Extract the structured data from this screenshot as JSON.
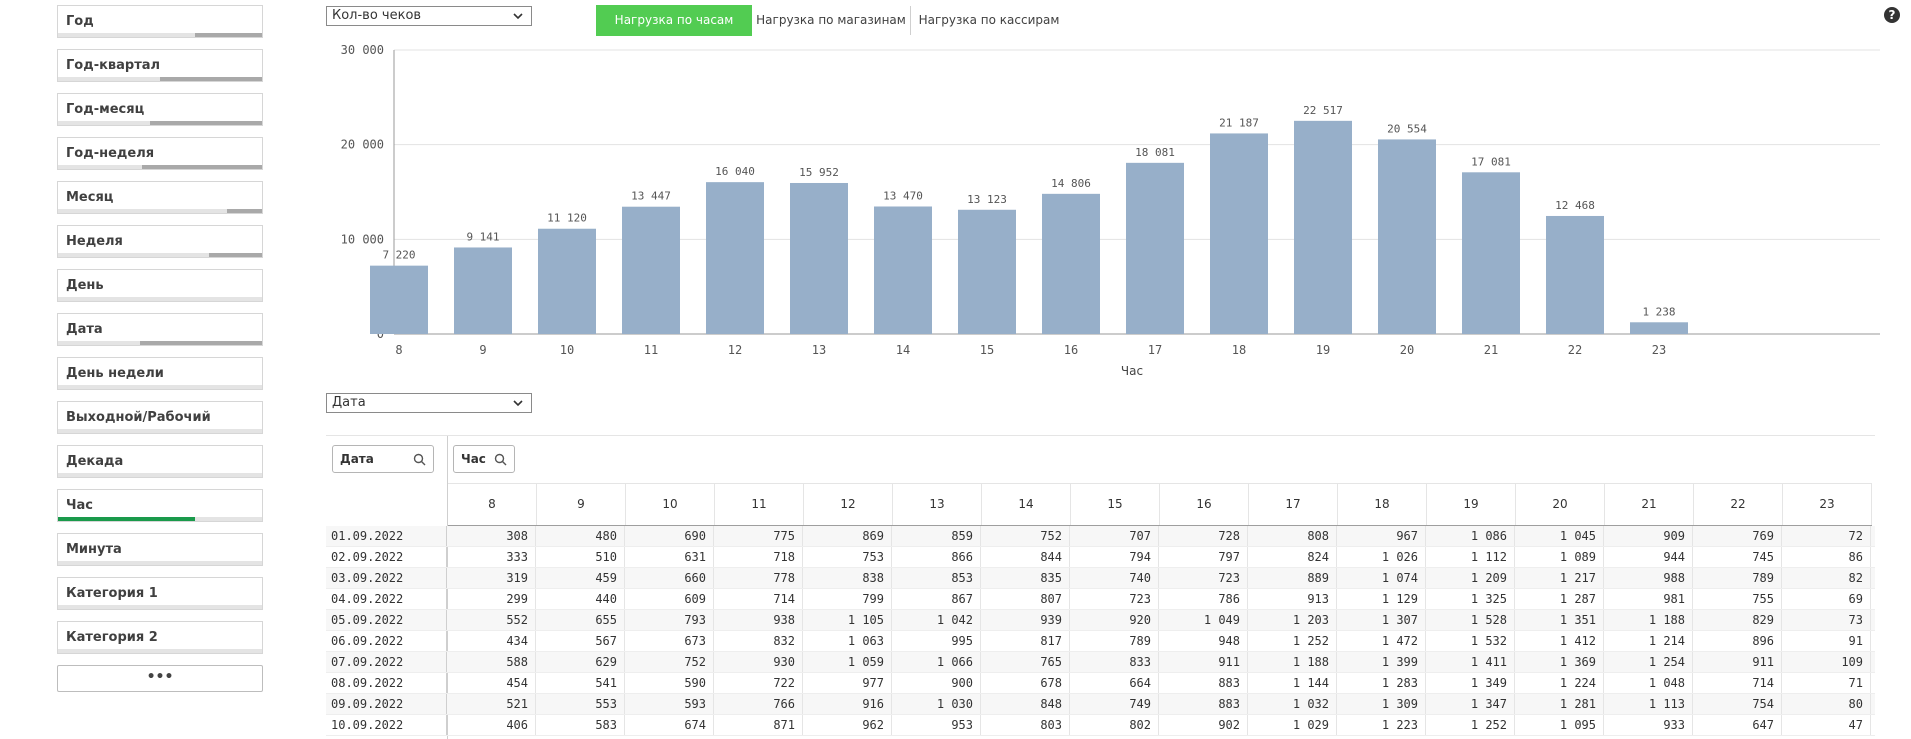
{
  "filters": [
    {
      "label": "Год",
      "fill": 0.33,
      "color": "#a9a9a9"
    },
    {
      "label": "Год-квартал",
      "fill": 0.5,
      "color": "#a9a9a9"
    },
    {
      "label": "Год-месяц",
      "fill": 0.55,
      "color": "#a9a9a9"
    },
    {
      "label": "Год-неделя",
      "fill": 0.59,
      "color": "#a9a9a9"
    },
    {
      "label": "Месяц",
      "fill": 0.17,
      "color": "#a9a9a9"
    },
    {
      "label": "Неделя",
      "fill": 0.26,
      "color": "#a9a9a9"
    },
    {
      "label": "День",
      "fill": 0,
      "color": "#a9a9a9"
    },
    {
      "label": "Дата",
      "fill": 0.6,
      "color": "#a9a9a9"
    },
    {
      "label": "День недели",
      "fill": 0,
      "color": "#a9a9a9"
    },
    {
      "label": "Выходной/Рабочий",
      "fill": 0,
      "color": "#a9a9a9"
    },
    {
      "label": "Декада",
      "fill": 0,
      "color": "#a9a9a9"
    },
    {
      "label": "Час",
      "fill": 0.67,
      "color": "#1a9a4b",
      "align": "left"
    },
    {
      "label": "Минута",
      "fill": 0,
      "color": "#a9a9a9"
    },
    {
      "label": "Категория 1",
      "fill": 0,
      "color": "#a9a9a9"
    },
    {
      "label": "Категория 2",
      "fill": 0,
      "color": "#a9a9a9"
    }
  ],
  "more_label": "•••",
  "measure_select": "Кол-во чеков",
  "tabs": [
    "Нагрузка по часам",
    "Нагрузка по магазинам",
    "Нагрузка по кассирам"
  ],
  "help_label": "?",
  "dim_select": "Дата",
  "chart_data": {
    "type": "bar",
    "categories": [
      "8",
      "9",
      "10",
      "11",
      "12",
      "13",
      "14",
      "15",
      "16",
      "17",
      "18",
      "19",
      "20",
      "21",
      "22",
      "23"
    ],
    "values": [
      7220,
      9141,
      11120,
      13447,
      16040,
      15952,
      13470,
      13123,
      14806,
      18081,
      21187,
      22517,
      20554,
      17081,
      12468,
      1238
    ],
    "value_labels": [
      "7 220",
      "9 141",
      "11 120",
      "13 447",
      "16 040",
      "15 952",
      "13 470",
      "13 123",
      "14 806",
      "18 081",
      "21 187",
      "22 517",
      "20 554",
      "17 081",
      "12 468",
      "1 238"
    ],
    "xlabel": "Час",
    "ylim": [
      0,
      30000
    ],
    "yticks": [
      0,
      10000,
      20000,
      30000
    ],
    "ytick_labels": [
      "0",
      "10 000",
      "20 000",
      "30 000"
    ],
    "bar_color": "#97afc9",
    "grid": true
  },
  "table": {
    "date_header": "Дата",
    "hour_header": "Час",
    "hours": [
      "8",
      "9",
      "10",
      "11",
      "12",
      "13",
      "14",
      "15",
      "16",
      "17",
      "18",
      "19",
      "20",
      "21",
      "22",
      "23"
    ],
    "rows": [
      {
        "date": "01.09.2022",
        "cells": [
          "308",
          "480",
          "690",
          "775",
          "869",
          "859",
          "752",
          "707",
          "728",
          "808",
          "967",
          "1 086",
          "1 045",
          "909",
          "769",
          "72"
        ]
      },
      {
        "date": "02.09.2022",
        "cells": [
          "333",
          "510",
          "631",
          "718",
          "753",
          "866",
          "844",
          "794",
          "797",
          "824",
          "1 026",
          "1 112",
          "1 089",
          "944",
          "745",
          "86"
        ]
      },
      {
        "date": "03.09.2022",
        "cells": [
          "319",
          "459",
          "660",
          "778",
          "838",
          "853",
          "835",
          "740",
          "723",
          "889",
          "1 074",
          "1 209",
          "1 217",
          "988",
          "789",
          "82"
        ]
      },
      {
        "date": "04.09.2022",
        "cells": [
          "299",
          "440",
          "609",
          "714",
          "799",
          "867",
          "807",
          "723",
          "786",
          "913",
          "1 129",
          "1 325",
          "1 287",
          "981",
          "755",
          "69"
        ]
      },
      {
        "date": "05.09.2022",
        "cells": [
          "552",
          "655",
          "793",
          "938",
          "1 105",
          "1 042",
          "939",
          "920",
          "1 049",
          "1 203",
          "1 307",
          "1 528",
          "1 351",
          "1 188",
          "829",
          "73"
        ]
      },
      {
        "date": "06.09.2022",
        "cells": [
          "434",
          "567",
          "673",
          "832",
          "1 063",
          "995",
          "817",
          "789",
          "948",
          "1 252",
          "1 472",
          "1 532",
          "1 412",
          "1 214",
          "896",
          "91"
        ]
      },
      {
        "date": "07.09.2022",
        "cells": [
          "588",
          "629",
          "752",
          "930",
          "1 059",
          "1 066",
          "765",
          "833",
          "911",
          "1 188",
          "1 399",
          "1 411",
          "1 369",
          "1 254",
          "911",
          "109"
        ]
      },
      {
        "date": "08.09.2022",
        "cells": [
          "454",
          "541",
          "590",
          "722",
          "977",
          "900",
          "678",
          "664",
          "883",
          "1 144",
          "1 283",
          "1 349",
          "1 224",
          "1 048",
          "714",
          "71"
        ]
      },
      {
        "date": "09.09.2022",
        "cells": [
          "521",
          "553",
          "593",
          "766",
          "916",
          "1 030",
          "848",
          "749",
          "883",
          "1 032",
          "1 309",
          "1 347",
          "1 281",
          "1 113",
          "754",
          "80"
        ]
      },
      {
        "date": "10.09.2022",
        "cells": [
          "406",
          "583",
          "674",
          "871",
          "962",
          "953",
          "803",
          "802",
          "902",
          "1 029",
          "1 223",
          "1 252",
          "1 095",
          "933",
          "647",
          "47"
        ]
      }
    ]
  }
}
